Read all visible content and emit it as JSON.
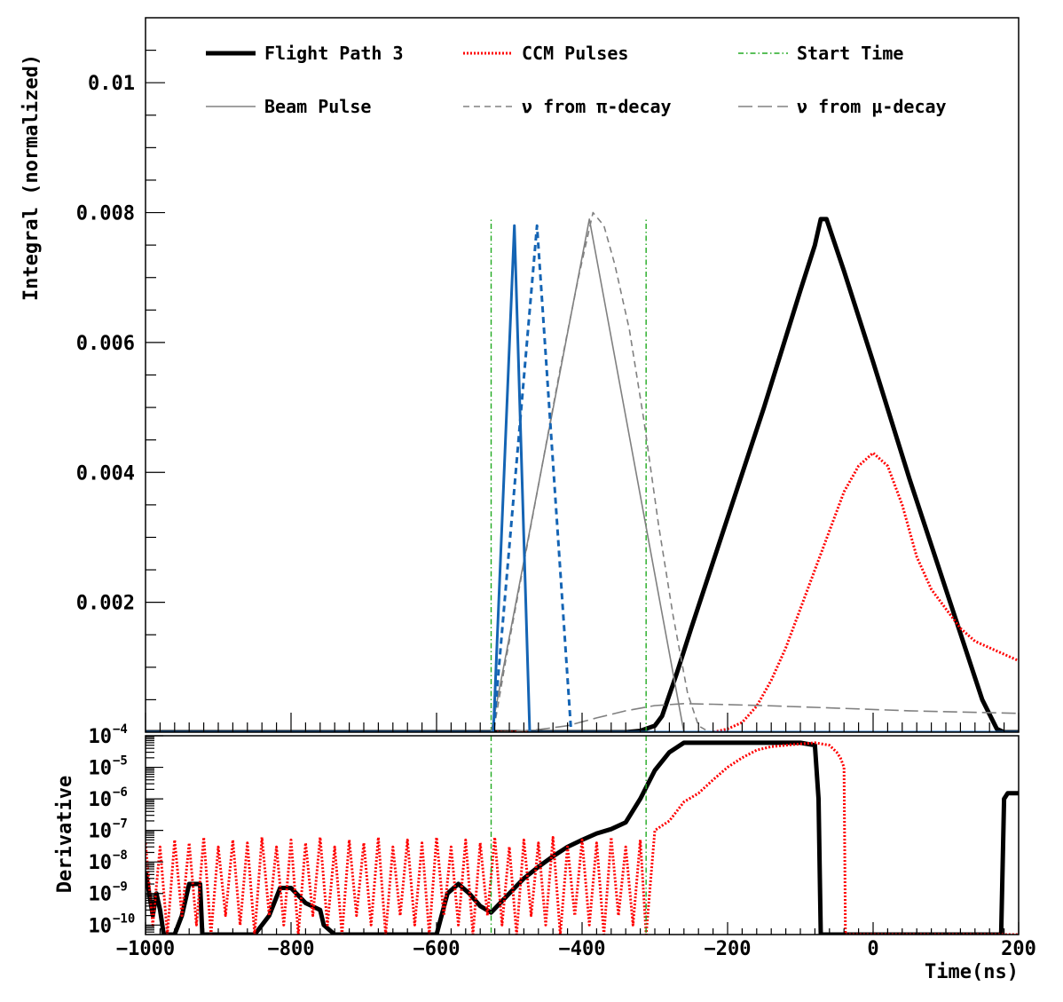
{
  "chart_data": [
    {
      "type": "line",
      "panel": "top",
      "xlabel": "",
      "ylabel": "Integral (normalized)",
      "xlim": [
        -1000,
        200
      ],
      "ylim": [
        0,
        0.011
      ],
      "y_tick_labels": [
        {
          "value": 0.002,
          "label": "0.002"
        },
        {
          "value": 0.004,
          "label": "0.004"
        },
        {
          "value": 0.006,
          "label": "0.006"
        },
        {
          "value": 0.008,
          "label": "0.008"
        },
        {
          "value": 0.01,
          "label": "0.01"
        }
      ],
      "legend": {
        "placement": "top",
        "entries": [
          {
            "label": "Flight Path 3",
            "color": "#000000",
            "style": "thick-solid"
          },
          {
            "label": "CCM Pulses",
            "color": "#ff0000",
            "style": "dotted"
          },
          {
            "label": "Start Time",
            "color": "#22aa22",
            "style": "dash-dot"
          },
          {
            "label": "Beam Pulse",
            "color": "#808080",
            "style": "solid"
          },
          {
            "label": "ν from π-decay",
            "color": "#808080",
            "style": "dashed"
          },
          {
            "label": "ν from μ-decay",
            "color": "#808080",
            "style": "long-dash"
          }
        ]
      },
      "series": [
        {
          "name": "Flight Path 3",
          "color": "#000000",
          "x": [
            -1000,
            -340,
            -320,
            -300,
            -290,
            -270,
            -250,
            -200,
            -150,
            -100,
            -80,
            -72,
            -64,
            -40,
            0,
            50,
            100,
            150,
            170,
            180,
            200
          ],
          "y": [
            0,
            0,
            2e-05,
            0.0001,
            0.00025,
            0.0009,
            0.0016,
            0.0033,
            0.005,
            0.0068,
            0.0075,
            0.0079,
            0.0079,
            0.0071,
            0.0057,
            0.0039,
            0.0022,
            0.0005,
            5e-05,
            0,
            0
          ]
        },
        {
          "name": "CCM Pulses",
          "color": "#ff0000",
          "x": [
            -1000,
            -220,
            -200,
            -180,
            -160,
            -140,
            -120,
            -100,
            -80,
            -60,
            -40,
            -20,
            0,
            20,
            40,
            60,
            80,
            100,
            120,
            140,
            160,
            180,
            200
          ],
          "y": [
            0,
            0,
            5e-05,
            0.00015,
            0.0004,
            0.0008,
            0.0013,
            0.0019,
            0.0025,
            0.0031,
            0.0037,
            0.0041,
            0.0043,
            0.0041,
            0.0035,
            0.0027,
            0.0022,
            0.0019,
            0.0016,
            0.0014,
            0.0013,
            0.0012,
            0.0011
          ]
        },
        {
          "name": "Start Time",
          "color": "#22aa22",
          "x_lines": [
            -525,
            -312
          ],
          "y_top": 0.0079
        },
        {
          "name": "Beam Pulse",
          "color": "#808080",
          "x": [
            -1000,
            -525,
            -390,
            -260,
            200
          ],
          "y": [
            0,
            0,
            0.0079,
            0,
            0
          ]
        },
        {
          "name": "ν from π-decay",
          "color": "#808080",
          "x": [
            -1000,
            -522,
            -505,
            -480,
            -455,
            -430,
            -405,
            -385,
            -370,
            -355,
            -335,
            -315,
            -295,
            -275,
            -255,
            -240,
            -225,
            200
          ],
          "y": [
            0,
            0,
            0.0011,
            0.0026,
            0.0041,
            0.0056,
            0.007,
            0.008,
            0.0078,
            0.0072,
            0.0062,
            0.0048,
            0.0032,
            0.0018,
            0.0006,
            0.0001,
            0,
            0
          ]
        },
        {
          "name": "ν from μ-decay",
          "color": "#808080",
          "x": [
            -1000,
            -525,
            -500,
            -460,
            -420,
            -380,
            -340,
            -300,
            -260,
            -220,
            -150,
            -50,
            50,
            200
          ],
          "y": [
            0,
            0,
            1e-05,
            4e-05,
            0.0001,
            0.00022,
            0.00033,
            0.00041,
            0.00044,
            0.00043,
            0.00041,
            0.00037,
            0.00033,
            0.00029
          ]
        },
        {
          "name": "",
          "color": "#1464b4",
          "style": "solid",
          "x": [
            -1000,
            -522,
            -493,
            -472,
            200
          ],
          "y": [
            0,
            0,
            0.0078,
            0,
            0
          ]
        },
        {
          "name": "",
          "color": "#1464b4",
          "style": "dashed",
          "x": [
            -1000,
            -522,
            -462,
            -415,
            200
          ],
          "y": [
            0,
            0,
            0.0078,
            0,
            0
          ]
        }
      ]
    },
    {
      "type": "line",
      "panel": "bottom",
      "ylabel": "Derivative",
      "xlabel": "Time(ns)",
      "xlim": [
        -1000,
        200
      ],
      "y_scale": "log",
      "ylim": [
        5e-11,
        0.0001
      ],
      "x_tick_labels": [
        {
          "value": -1000,
          "label": "−1000"
        },
        {
          "value": -800,
          "label": "−800"
        },
        {
          "value": -600,
          "label": "−600"
        },
        {
          "value": -400,
          "label": "−400"
        },
        {
          "value": -200,
          "label": "−200"
        },
        {
          "value": 0,
          "label": "0"
        },
        {
          "value": 200,
          "label": "200"
        }
      ],
      "y_tick_labels": [
        {
          "value": 1e-10,
          "mantissa": "10",
          "exponent": "−10"
        },
        {
          "value": 1e-09,
          "mantissa": "10",
          "exponent": "−9"
        },
        {
          "value": 1e-08,
          "mantissa": "10",
          "exponent": "−8"
        },
        {
          "value": 1e-07,
          "mantissa": "10",
          "exponent": "−7"
        },
        {
          "value": 1e-06,
          "mantissa": "10",
          "exponent": "−6"
        },
        {
          "value": 1e-05,
          "mantissa": "10",
          "exponent": "−5"
        },
        {
          "value": 0.0001,
          "mantissa": "10",
          "exponent": "−4"
        }
      ],
      "series": [
        {
          "name": "Flight Path 3",
          "color": "#000000",
          "x": [
            -1000,
            -995,
            -990,
            -985,
            -980,
            -975,
            -960,
            -950,
            -940,
            -925,
            -922,
            -900,
            -850,
            -830,
            -815,
            -800,
            -780,
            -760,
            -755,
            -740,
            -735,
            -600,
            -585,
            -570,
            -555,
            -540,
            -525,
            -500,
            -480,
            -460,
            -440,
            -420,
            -400,
            -380,
            -360,
            -340,
            -320,
            -300,
            -280,
            -260,
            -220,
            -180,
            -150,
            -100,
            -80,
            -75,
            -72,
            -70,
            170,
            176,
            180,
            185,
            200
          ],
          "y": [
            5e-09,
            1e-09,
            2e-10,
            1e-09,
            3e-10,
            5e-11,
            5e-11,
            2e-10,
            2e-09,
            2e-09,
            5e-11,
            5e-11,
            5e-11,
            2e-10,
            1.5e-09,
            1.5e-09,
            5e-10,
            3e-10,
            1e-10,
            5e-11,
            5e-11,
            5e-11,
            1e-09,
            2e-09,
            1e-09,
            4e-10,
            2.5e-10,
            1e-09,
            3e-09,
            7e-09,
            1.5e-08,
            3e-08,
            5e-08,
            8e-08,
            1.1e-07,
            1.8e-07,
            1e-06,
            8e-06,
            3e-05,
            6e-05,
            6e-05,
            6e-05,
            6e-05,
            6e-05,
            5e-05,
            1e-06,
            5e-11,
            5e-11,
            5e-11,
            5e-11,
            1e-06,
            1.5e-06,
            1.5e-06
          ]
        },
        {
          "name": "CCM Pulses",
          "color": "#ff0000",
          "x": [
            -1000,
            -990,
            -980,
            -970,
            -960,
            -950,
            -940,
            -930,
            -920,
            -910,
            -900,
            -890,
            -880,
            -870,
            -860,
            -850,
            -840,
            -830,
            -820,
            -810,
            -800,
            -790,
            -780,
            -770,
            -760,
            -750,
            -740,
            -730,
            -720,
            -710,
            -700,
            -690,
            -680,
            -670,
            -660,
            -650,
            -640,
            -630,
            -620,
            -610,
            -600,
            -590,
            -580,
            -570,
            -560,
            -550,
            -540,
            -530,
            -520,
            -510,
            -500,
            -490,
            -480,
            -470,
            -460,
            -450,
            -440,
            -430,
            -420,
            -410,
            -400,
            -390,
            -380,
            -370,
            -360,
            -350,
            -340,
            -330,
            -320,
            -312,
            -300,
            -280,
            -260,
            -240,
            -220,
            -200,
            -180,
            -160,
            -140,
            -120,
            -100,
            -80,
            -60,
            -50,
            -45,
            -40,
            -38,
            200
          ],
          "y": [
            4e-08,
            1e-10,
            3e-08,
            5e-11,
            5e-08,
            2e-10,
            4e-08,
            1e-10,
            6e-08,
            5e-11,
            3e-08,
            2e-10,
            5e-08,
            1e-10,
            4e-08,
            5e-11,
            6e-08,
            2e-10,
            3e-08,
            1e-10,
            5e-08,
            5e-11,
            4e-08,
            2e-10,
            6e-08,
            1e-10,
            3e-08,
            5e-11,
            5e-08,
            2e-10,
            4e-08,
            1e-10,
            6e-08,
            5e-11,
            3e-08,
            2e-10,
            5e-08,
            1e-10,
            4e-08,
            5e-11,
            6e-08,
            2e-10,
            3e-08,
            1e-10,
            5e-08,
            5e-11,
            4e-08,
            2e-10,
            6e-08,
            1e-10,
            3e-08,
            5e-11,
            5e-08,
            2e-10,
            4e-08,
            1e-10,
            6e-08,
            5e-11,
            3e-08,
            2e-10,
            5e-08,
            1e-10,
            4e-08,
            5e-11,
            6e-08,
            2e-10,
            3e-08,
            1e-10,
            5e-08,
            5e-11,
            1e-07,
            2e-07,
            8e-07,
            1.5e-06,
            4e-06,
            1e-05,
            2e-05,
            3.5e-05,
            4.5e-05,
            5e-05,
            5.5e-05,
            6e-05,
            5e-05,
            3e-05,
            2e-05,
            1e-05,
            5e-11,
            5e-11
          ]
        },
        {
          "name": "Start Time",
          "color": "#22aa22",
          "x_lines": [
            -525,
            -312
          ]
        }
      ]
    }
  ]
}
